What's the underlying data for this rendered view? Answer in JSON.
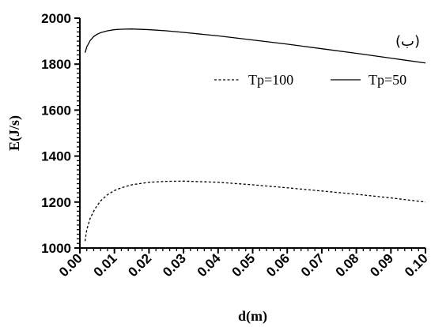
{
  "chart_data": {
    "type": "line",
    "panel_label": "(ب)",
    "xlabel": "d(m)",
    "ylabel": "E(J/s)",
    "xlim": [
      0,
      0.1
    ],
    "ylim": [
      1000,
      2000
    ],
    "x_ticks": [
      "0.00",
      "0.01",
      "0.02",
      "0.03",
      "0.04",
      "0.05",
      "0.06",
      "0.07",
      "0.08",
      "0.09",
      "0.10"
    ],
    "y_ticks": [
      "1000",
      "1200",
      "1400",
      "1600",
      "1800",
      "2000"
    ],
    "grid": false,
    "legend_position": "top-right",
    "series": [
      {
        "name": "Tp=50",
        "style": "solid",
        "x": [
          0.0015,
          0.002,
          0.003,
          0.004,
          0.005,
          0.006,
          0.008,
          0.01,
          0.012,
          0.015,
          0.02,
          0.025,
          0.03,
          0.04,
          0.05,
          0.06,
          0.07,
          0.08,
          0.09,
          0.1
        ],
        "y": [
          1850,
          1875,
          1903,
          1920,
          1930,
          1937,
          1945,
          1950,
          1952,
          1953,
          1950,
          1945,
          1938,
          1923,
          1905,
          1887,
          1867,
          1847,
          1826,
          1805
        ]
      },
      {
        "name": "Tp=100",
        "style": "dashed",
        "x": [
          0.0015,
          0.002,
          0.003,
          0.004,
          0.005,
          0.006,
          0.008,
          0.01,
          0.012,
          0.015,
          0.02,
          0.025,
          0.03,
          0.04,
          0.05,
          0.06,
          0.07,
          0.08,
          0.09,
          0.1
        ],
        "y": [
          1030,
          1080,
          1130,
          1160,
          1185,
          1205,
          1232,
          1250,
          1262,
          1275,
          1286,
          1290,
          1291,
          1286,
          1275,
          1262,
          1248,
          1234,
          1218,
          1200
        ]
      }
    ]
  }
}
